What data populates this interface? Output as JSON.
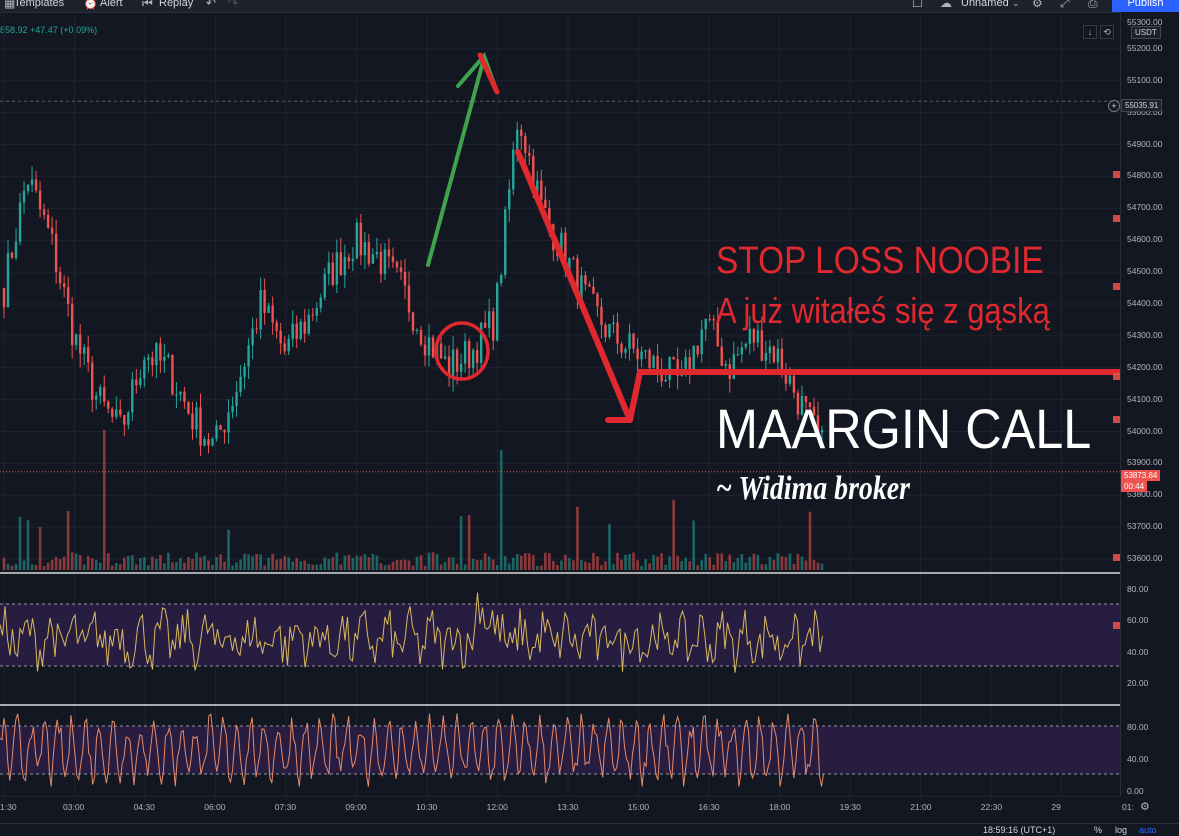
{
  "toolbar": {
    "templates": "Templates",
    "alert": "Alert",
    "replay": "Replay",
    "layout_name": "Unnamed",
    "publish": "Publish"
  },
  "ticker_change": "858.92 +47.47 (+0.09%)",
  "currency": "USDT",
  "price_axis": [
    "55200.00",
    "55100.00",
    "55000.00",
    "54900.00",
    "54800.00",
    "54700.00",
    "54600.00",
    "54500.00",
    "54400.00",
    "54300.00",
    "54200.00",
    "54100.00",
    "54000.00",
    "53900.00",
    "53800.00",
    "53700.00",
    "53600.00"
  ],
  "price_axis_top": "55300.00",
  "crosshair_price": "55035.91",
  "last_price": "53873.84",
  "countdown": "00:44",
  "indicator1_axis": [
    "80.00",
    "60.00",
    "40.00",
    "20.00"
  ],
  "indicator2_axis": [
    "80.00",
    "40.00",
    "0.00"
  ],
  "time_axis": [
    "1:30",
    "03:00",
    "04:30",
    "06:00",
    "07:30",
    "09:00",
    "10:30",
    "12:00",
    "13:30",
    "15:00",
    "16:30",
    "18:00",
    "19:30",
    "21:00",
    "22:30",
    "29",
    "01:"
  ],
  "status": {
    "clock": "18:59:16 (UTC+1)",
    "percent": "%",
    "log": "log",
    "auto": "auto"
  },
  "annotations": {
    "stop_loss": "STOP LOSS NOOBIE",
    "subtitle": "A już witałeś się z gąską",
    "margin_call": "MAARGIN CALL",
    "signature": "~ Widima broker"
  },
  "colors": {
    "background": "#131722",
    "up": "#26a69a",
    "down": "#ef5350",
    "annotation_red": "#e0282e",
    "arrow_green": "#3fa34d",
    "accent_blue": "#2962ff",
    "rsi_line": "#d9b85f",
    "stoch_line": "#e58a6a",
    "band": "#2b1e45"
  },
  "chart_data": {
    "type": "candlestick",
    "price_range": [
      53550,
      55300
    ],
    "close_path": [
      54450,
      54800,
      54600,
      54300,
      54100,
      54000,
      54250,
      54200,
      54050,
      53950,
      54150,
      54400,
      54250,
      54350,
      54500,
      54600,
      54550,
      54450,
      54300,
      54200,
      54250,
      54350,
      55000,
      54700,
      54550,
      54400,
      54300,
      54250,
      54200,
      54150,
      54350,
      54200,
      54300,
      54250,
      54100,
      53950
    ],
    "rsi_range": [
      0,
      100
    ],
    "rsi_bands": [
      30,
      70
    ],
    "stoch_range": [
      0,
      100
    ],
    "stoch_bands": [
      20,
      80
    ]
  }
}
